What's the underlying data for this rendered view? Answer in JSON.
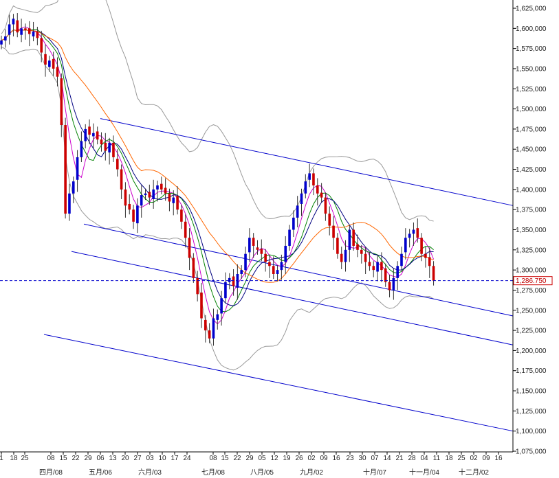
{
  "chart_data": {
    "type": "candlestick",
    "title": "",
    "xlabel": "",
    "ylabel": "",
    "ylim": [
      1075000,
      1625000
    ],
    "grid": false,
    "legend": "none",
    "colors": {
      "bull": "#0000cc",
      "bear": "#cc0000",
      "channel": "#0000cc",
      "bollinger": "#999999",
      "ma_short": "#cc00cc",
      "ma_mid": "#008000",
      "ma_fast": "#000080",
      "ma_long": "#ff6600",
      "current_line": "#0000cc",
      "axis": "#000000"
    },
    "y_ticks": [
      "1,625,000",
      "1,600,000",
      "1,575,000",
      "1,550,000",
      "1,525,000",
      "1,500,000",
      "1,475,000",
      "1,450,000",
      "1,425,000",
      "1,400,000",
      "1,375,000",
      "1,350,000",
      "1,325,000",
      "1,300,000",
      "1,275,000",
      "1,250,000",
      "1,225,000",
      "1,200,000",
      "1,175,000",
      "1,150,000",
      "1,125,000",
      "1,100,000",
      "1,075,000"
    ],
    "y_tick_values": [
      1625000,
      1600000,
      1575000,
      1550000,
      1525000,
      1500000,
      1475000,
      1450000,
      1425000,
      1400000,
      1375000,
      1350000,
      1325000,
      1300000,
      1275000,
      1250000,
      1225000,
      1200000,
      1175000,
      1150000,
      1125000,
      1100000,
      1075000
    ],
    "x_day_ticks": [
      "1",
      "18",
      "25",
      "08",
      "15",
      "22",
      "29",
      "06",
      "13",
      "20",
      "27",
      "03",
      "10",
      "17",
      "24",
      "08",
      "15",
      "22",
      "29",
      "05",
      "12",
      "19",
      "26",
      "02",
      "09",
      "16",
      "23",
      "30",
      "07",
      "14",
      "21",
      "28",
      "04",
      "11",
      "18",
      "25",
      "02",
      "09",
      "16"
    ],
    "x_month_labels": [
      "四月/08",
      "五月/06",
      "六月/03",
      "七月/08",
      "八月/05",
      "九月/02",
      "十月/07",
      "十一月/04",
      "十二月/02"
    ],
    "current_price": 1286750,
    "current_price_label": "1,286.750",
    "closes": [
      1585000,
      1590000,
      1605000,
      1612000,
      1595000,
      1600000,
      1598000,
      1593000,
      1596000,
      1588000,
      1570000,
      1555000,
      1560000,
      1550000,
      1540000,
      1480000,
      1370000,
      1395000,
      1410000,
      1440000,
      1460000,
      1475000,
      1468000,
      1470000,
      1462000,
      1456000,
      1448000,
      1458000,
      1440000,
      1425000,
      1400000,
      1380000,
      1375000,
      1360000,
      1380000,
      1393000,
      1395000,
      1390000,
      1400000,
      1405000,
      1400000,
      1395000,
      1385000,
      1390000,
      1375000,
      1360000,
      1340000,
      1315000,
      1290000,
      1270000,
      1240000,
      1225000,
      1215000,
      1240000,
      1245000,
      1265000,
      1285000,
      1290000,
      1280000,
      1295000,
      1300000,
      1320000,
      1340000,
      1330000,
      1325000,
      1320000,
      1310000,
      1305000,
      1295000,
      1300000,
      1310000,
      1330000,
      1350000,
      1365000,
      1380000,
      1395000,
      1410000,
      1420000,
      1405000,
      1395000,
      1390000,
      1370000,
      1355000,
      1340000,
      1320000,
      1310000,
      1325000,
      1350000,
      1330000,
      1325000,
      1320000,
      1310000,
      1305000,
      1300000,
      1310000,
      1300000,
      1285000,
      1275000,
      1290000,
      1305000,
      1320000,
      1340000,
      1345000,
      1350000,
      1340000,
      1320000,
      1315000,
      1305000,
      1286750
    ],
    "opens": [
      1580000,
      1585000,
      1592000,
      1605000,
      1610000,
      1592000,
      1600000,
      1600000,
      1590000,
      1596000,
      1588000,
      1568000,
      1552000,
      1562000,
      1552000,
      1538000,
      1480000,
      1370000,
      1395000,
      1412000,
      1440000,
      1460000,
      1478000,
      1466000,
      1472000,
      1462000,
      1458000,
      1446000,
      1458000,
      1438000,
      1425000,
      1400000,
      1382000,
      1375000,
      1358000,
      1380000,
      1393000,
      1397000,
      1388000,
      1400000,
      1407000,
      1402000,
      1395000,
      1383000,
      1392000,
      1375000,
      1360000,
      1340000,
      1315000,
      1290000,
      1272000,
      1238000,
      1225000,
      1215000,
      1238000,
      1246000,
      1265000,
      1285000,
      1292000,
      1278000,
      1295000,
      1300000,
      1322000,
      1340000,
      1328000,
      1326000,
      1320000,
      1310000,
      1305000,
      1295000,
      1300000,
      1310000,
      1330000,
      1350000,
      1365000,
      1382000,
      1395000,
      1412000,
      1420000,
      1405000,
      1396000,
      1390000,
      1370000,
      1355000,
      1340000,
      1320000,
      1310000,
      1325000,
      1350000,
      1332000,
      1325000,
      1320000,
      1310000,
      1305000,
      1298000,
      1310000,
      1302000,
      1285000,
      1275000,
      1290000,
      1305000,
      1322000,
      1340000,
      1345000,
      1352000,
      1340000,
      1320000,
      1316000,
      1305000
    ]
  }
}
